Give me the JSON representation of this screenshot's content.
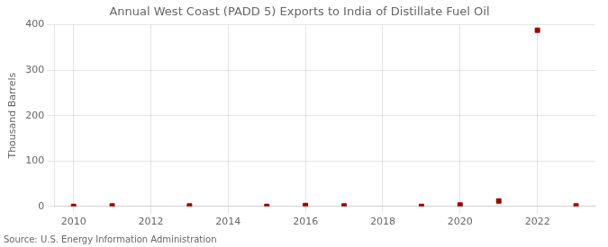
{
  "chart_data": {
    "type": "scatter",
    "title": "Annual West Coast (PADD 5) Exports to India of Distillate Fuel Oil",
    "y_label": "Thousand Barrels",
    "annotations": [
      "Source: U.S. Energy Information Administration"
    ],
    "x": [
      2010,
      2011,
      2013,
      2015,
      2016,
      2017,
      2019,
      2020,
      2021,
      2022,
      2023
    ],
    "values": [
      0,
      1,
      1,
      0,
      2,
      1,
      0,
      3,
      12,
      388,
      1
    ],
    "color": "#990000",
    "marker": "square",
    "xlim": [
      2009.5,
      2023.5
    ],
    "xticks": [
      2010,
      2012,
      2014,
      2016,
      2018,
      2020,
      2022
    ],
    "ylim": [
      0,
      400
    ],
    "yticks": [
      0,
      100,
      200,
      300,
      400
    ],
    "grid": true
  }
}
